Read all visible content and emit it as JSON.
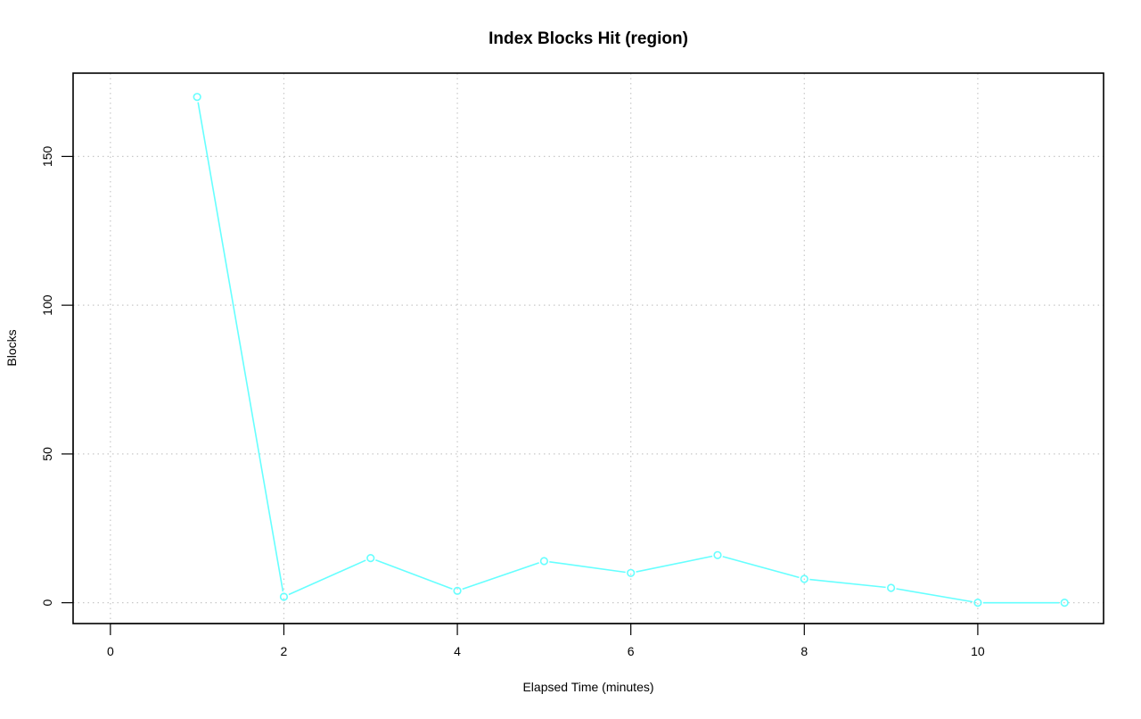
{
  "chart_data": {
    "type": "line",
    "title": "Index Blocks Hit (region)",
    "xlabel": "Elapsed Time (minutes)",
    "ylabel": "Blocks",
    "x_ticks": [
      "0",
      "2",
      "4",
      "6",
      "8",
      "10"
    ],
    "y_ticks": [
      "0",
      "50",
      "100",
      "150"
    ],
    "xlim": [
      -0.43,
      11.45
    ],
    "ylim": [
      -7,
      178
    ],
    "grid": true,
    "legend": "none",
    "series": [
      {
        "color": "#66FFFF",
        "marker": "open-circle",
        "x": [
          1,
          2,
          3,
          4,
          5,
          6,
          7,
          8,
          9,
          10,
          11
        ],
        "y": [
          170,
          2,
          15,
          4,
          14,
          10,
          16,
          8,
          5,
          0,
          0
        ]
      }
    ]
  }
}
